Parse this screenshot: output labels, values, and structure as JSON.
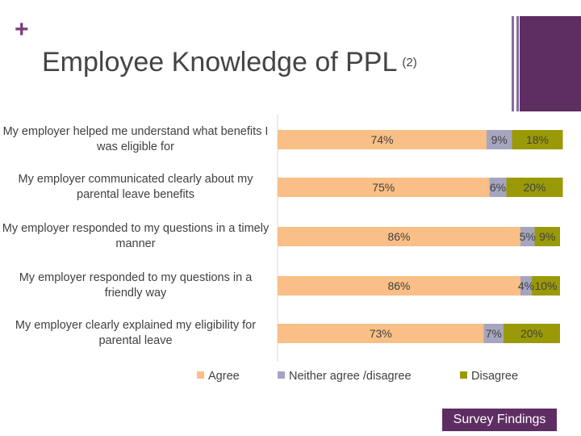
{
  "slide": {
    "plus": "+",
    "title": "Employee Knowledge of PPL",
    "title_suffix": "(2)",
    "badge": "Survey Findings",
    "accent_color": "#5e2d62"
  },
  "chart_data": {
    "type": "bar",
    "orientation": "horizontal",
    "stacked": true,
    "categories": [
      "My employer helped me understand what benefits I was eligible for",
      "My employer communicated clearly about my parental leave benefits",
      "My employer responded to my questions in a timely manner",
      "My employer responded to my questions in a friendly way",
      "My employer clearly explained my eligibility for parental leave"
    ],
    "series": [
      {
        "name": "Agree",
        "color": "#f9bf86",
        "values": [
          74,
          75,
          86,
          86,
          73
        ],
        "labels": [
          "74%",
          "75%",
          "86%",
          "86%",
          "73%"
        ]
      },
      {
        "name": "Neither agree /disagree",
        "color": "#a5a5c0",
        "values": [
          9,
          6,
          5,
          4,
          7
        ],
        "labels": [
          "9%",
          "6%",
          "5%",
          "4%",
          "7%"
        ]
      },
      {
        "name": "Disagree",
        "color": "#9a9a08",
        "values": [
          18,
          20,
          9,
          10,
          20
        ],
        "labels": [
          "18%",
          "20%",
          "9%",
          "10%",
          "20%"
        ]
      }
    ],
    "xlim": [
      0,
      100
    ],
    "grid": false,
    "legend_position": "bottom"
  }
}
